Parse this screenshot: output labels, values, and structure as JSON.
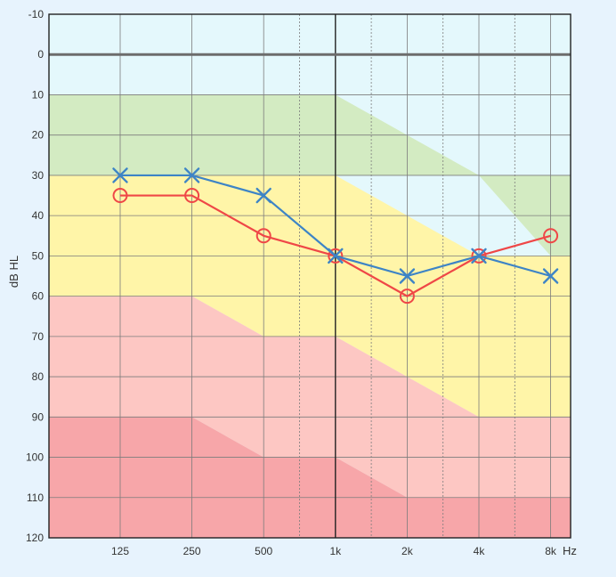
{
  "chart_data": {
    "type": "line",
    "ylabel": "dB HL",
    "xunit": "Hz",
    "x_categories": [
      "125",
      "250",
      "500",
      "1k",
      "2k",
      "4k",
      "8k"
    ],
    "ylim": [
      -10,
      120
    ],
    "y_inverted": true,
    "y_ticks": [
      "-10",
      "0",
      "10",
      "20",
      "30",
      "40",
      "50",
      "60",
      "70",
      "80",
      "90",
      "100",
      "110",
      "120"
    ],
    "grid": true,
    "series": [
      {
        "marker": "x",
        "color": "#3d84c6",
        "values": [
          30,
          30,
          35,
          50,
          55,
          50,
          55
        ]
      },
      {
        "marker": "o",
        "color": "#ef4747",
        "values": [
          35,
          35,
          45,
          50,
          60,
          50,
          45
        ]
      }
    ],
    "background_bands_colors": {
      "normal": "#e4f8fc",
      "mild": "#d3ebc2",
      "moderate": "#fff5a8",
      "severe": "#fdc7c3",
      "profound": "#f7a6a9"
    },
    "background_bands": [
      {
        "band": "mild",
        "from_db": [
          10,
          10,
          10,
          10,
          20,
          30,
          30
        ],
        "to_db": [
          30,
          30,
          30,
          30,
          30,
          30,
          50
        ]
      },
      {
        "band": "moderate",
        "from_db": [
          30,
          30,
          30,
          30,
          40,
          50,
          50
        ],
        "to_db": [
          60,
          60,
          70,
          70,
          80,
          90,
          90
        ]
      },
      {
        "band": "severe",
        "from_db": [
          60,
          60,
          70,
          70,
          80,
          90,
          90
        ],
        "to_db": [
          90,
          90,
          100,
          100,
          110,
          110,
          110
        ]
      },
      {
        "band": "profound",
        "from_db": [
          90,
          90,
          100,
          100,
          110,
          110,
          110
        ],
        "to_db": [
          120,
          120,
          120,
          120,
          120,
          120,
          120
        ]
      }
    ],
    "zero_line_db": 0,
    "colors": {
      "grid": "#7c7c7c",
      "frame": "#222222",
      "zero_line": "#6c6c6c"
    }
  }
}
